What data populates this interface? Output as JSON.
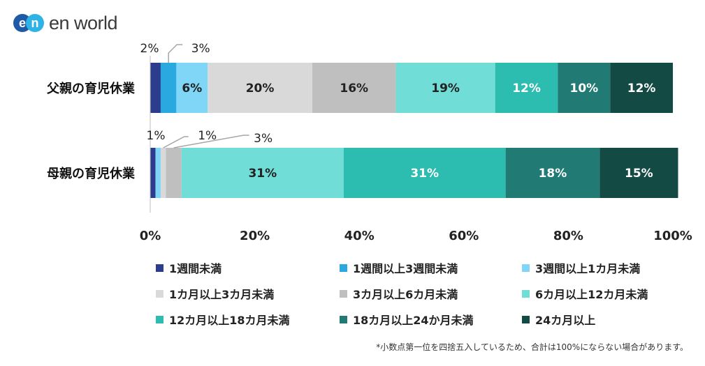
{
  "brand": {
    "name": "en world",
    "mark_left": "e",
    "mark_right": "n",
    "primary_color": "#1f5aa6",
    "secondary_color": "#2fb3e6"
  },
  "chart_data": {
    "type": "bar",
    "orientation": "horizontal",
    "stacked": true,
    "categories": [
      "父親の育児休業",
      "母親の育児休業"
    ],
    "series": [
      {
        "name": "1週間未満",
        "color": "#2b3d8c",
        "values": [
          2,
          1
        ]
      },
      {
        "name": "1週間以上3週間未満",
        "color": "#2aa8e0",
        "values": [
          3,
          0
        ]
      },
      {
        "name": "3週間以上1カ月未満",
        "color": "#7fd6f7",
        "values": [
          6,
          1
        ]
      },
      {
        "name": "1カ月以上3カ月未満",
        "color": "#d9d9d9",
        "values": [
          20,
          1
        ]
      },
      {
        "name": "3カ月以上6カ月未満",
        "color": "#bfbfbf",
        "values": [
          16,
          3
        ]
      },
      {
        "name": "6カ月以上12カ月未満",
        "color": "#70ddd6",
        "values": [
          19,
          31
        ]
      },
      {
        "name": "12カ月以上18カ月未満",
        "color": "#2dbcb0",
        "values": [
          12,
          31
        ]
      },
      {
        "name": "18カ月以上24か月未満",
        "color": "#217a74",
        "values": [
          10,
          18
        ]
      },
      {
        "name": "24カ月以上",
        "color": "#134b44",
        "values": [
          12,
          15
        ]
      }
    ],
    "data_labels": [
      [
        "2%",
        "3%",
        "6%",
        "20%",
        "16%",
        "19%",
        "12%",
        "10%",
        "12%"
      ],
      [
        "",
        "",
        "1%",
        "1%",
        "3%",
        "31%",
        "31%",
        "18%",
        "15%"
      ]
    ],
    "x_ticks": [
      "0%",
      "20%",
      "40%",
      "60%",
      "80%",
      "100%"
    ],
    "xlim": [
      0,
      100
    ],
    "legend_position": "bottom",
    "grid": false
  },
  "footnote": "*小数点第一位を四捨五入しているため、合計は100%にならない場合があります。"
}
